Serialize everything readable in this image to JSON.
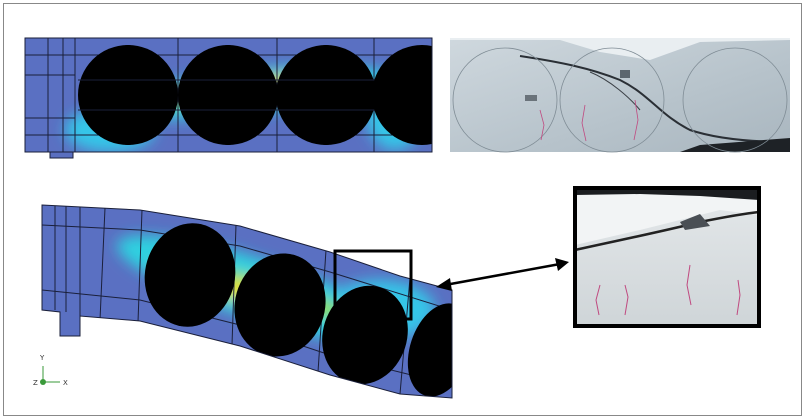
{
  "triad": {
    "y": "Y",
    "z": "Z",
    "x": "X"
  }
}
